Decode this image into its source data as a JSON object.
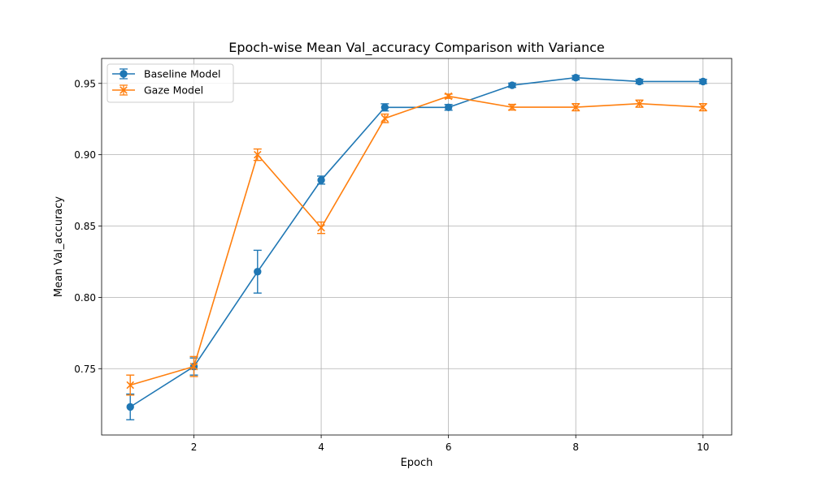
{
  "chart_data": {
    "type": "line",
    "title": "Epoch-wise Mean Val_accuracy Comparison with Variance",
    "xlabel": "Epoch",
    "ylabel": "Mean Val_accuracy",
    "xlim": [
      0.55,
      10.45
    ],
    "ylim": [
      0.7035,
      0.9675
    ],
    "x_ticks": [
      2,
      4,
      6,
      8,
      10
    ],
    "y_ticks": [
      0.75,
      0.8,
      0.85,
      0.9,
      0.95
    ],
    "x_tick_labels": [
      "2",
      "4",
      "6",
      "8",
      "10"
    ],
    "y_tick_labels": [
      "0.75",
      "0.80",
      "0.85",
      "0.90",
      "0.95"
    ],
    "grid": true,
    "legend_position": "upper-left",
    "x": [
      1,
      2,
      3,
      4,
      5,
      6,
      7,
      8,
      9,
      10
    ],
    "series": [
      {
        "name": "Baseline Model",
        "color": "#1f77b4",
        "marker": "circle",
        "values": [
          0.7232,
          0.7515,
          0.818,
          0.8822,
          0.9332,
          0.9332,
          0.9487,
          0.954,
          0.9513,
          0.9513
        ],
        "errors": [
          0.009,
          0.006,
          0.015,
          0.0028,
          0.0025,
          0.002,
          0.0015,
          0.0015,
          0.0015,
          0.0015
        ]
      },
      {
        "name": "Gaze Model",
        "color": "#ff7f0e",
        "marker": "x",
        "values": [
          0.7385,
          0.7515,
          0.9,
          0.8488,
          0.9255,
          0.941,
          0.9333,
          0.9333,
          0.9358,
          0.9333
        ],
        "errors": [
          0.007,
          0.007,
          0.004,
          0.004,
          0.003,
          0.0015,
          0.002,
          0.0025,
          0.0025,
          0.0025
        ]
      }
    ]
  }
}
